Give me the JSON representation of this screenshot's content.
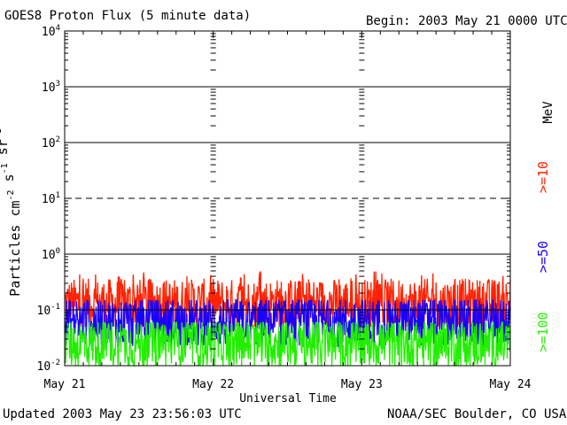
{
  "header": {
    "title": "GOES8 Proton Flux (5 minute data)",
    "begin": "Begin: 2003 May 21 0000 UTC"
  },
  "footer": {
    "updated": "Updated 2003 May 23 23:56:03 UTC",
    "credit": "NOAA/SEC Boulder, CO USA"
  },
  "colors": {
    "ge10": "#ff2200",
    "ge50": "#1a00ff",
    "ge100": "#22ee00",
    "axis": "#000000"
  },
  "chart_data": {
    "type": "line",
    "title": "GOES8 Proton Flux (5 minute data)",
    "xlabel": "Universal Time",
    "ylabel": "Particles cm^-2 s^-1 sr^-1",
    "yscale": "log",
    "ylim": [
      0.01,
      10000
    ],
    "ytick_labels": [
      "10^-2",
      "10^-1",
      "10^0",
      "10^1",
      "10^2",
      "10^3",
      "10^4"
    ],
    "xlim_days": [
      0,
      3
    ],
    "x_tick_labels": [
      "May 21",
      "May 22",
      "May 23",
      "May 24"
    ],
    "threshold_lines": [
      {
        "value": 10,
        "style": "dashed"
      },
      {
        "value": 0.1,
        "style": "solid"
      }
    ],
    "grid": "horizontal decade lines",
    "legend_unit": "MeV",
    "legend_placement": "right side, vertical",
    "series": [
      {
        "name": ">=10",
        "color": "#ff2200",
        "typical": 0.13,
        "min": 0.05,
        "max": 0.5
      },
      {
        "name": ">=50",
        "color": "#1a00ff",
        "typical": 0.06,
        "min": 0.02,
        "max": 0.15
      },
      {
        "name": ">=100",
        "color": "#22ee00",
        "typical": 0.025,
        "min": 0.01,
        "max": 0.06
      }
    ]
  }
}
